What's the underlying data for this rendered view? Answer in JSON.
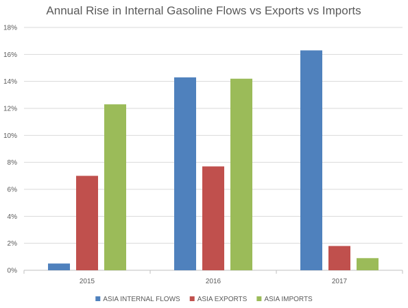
{
  "chart_data": {
    "type": "bar",
    "title": "Annual Rise in Internal Gasoline Flows vs Exports vs Imports",
    "xlabel": "",
    "ylabel": "",
    "categories": [
      "2015",
      "2016",
      "2017"
    ],
    "series": [
      {
        "name": "ASIA INTERNAL FLOWS",
        "color": "#4f81bd",
        "values": [
          0.5,
          14.3,
          16.3
        ]
      },
      {
        "name": "ASIA EXPORTS",
        "color": "#c0504d",
        "values": [
          7.0,
          7.7,
          1.8
        ]
      },
      {
        "name": "ASIA IMPORTS",
        "color": "#9bbb59",
        "values": [
          12.3,
          14.2,
          0.9
        ]
      }
    ],
    "ylim": [
      0,
      18
    ],
    "y_ticks": [
      "0%",
      "2%",
      "4%",
      "6%",
      "8%",
      "10%",
      "12%",
      "14%",
      "16%",
      "18%"
    ],
    "grid": true,
    "legend_position": "bottom"
  }
}
